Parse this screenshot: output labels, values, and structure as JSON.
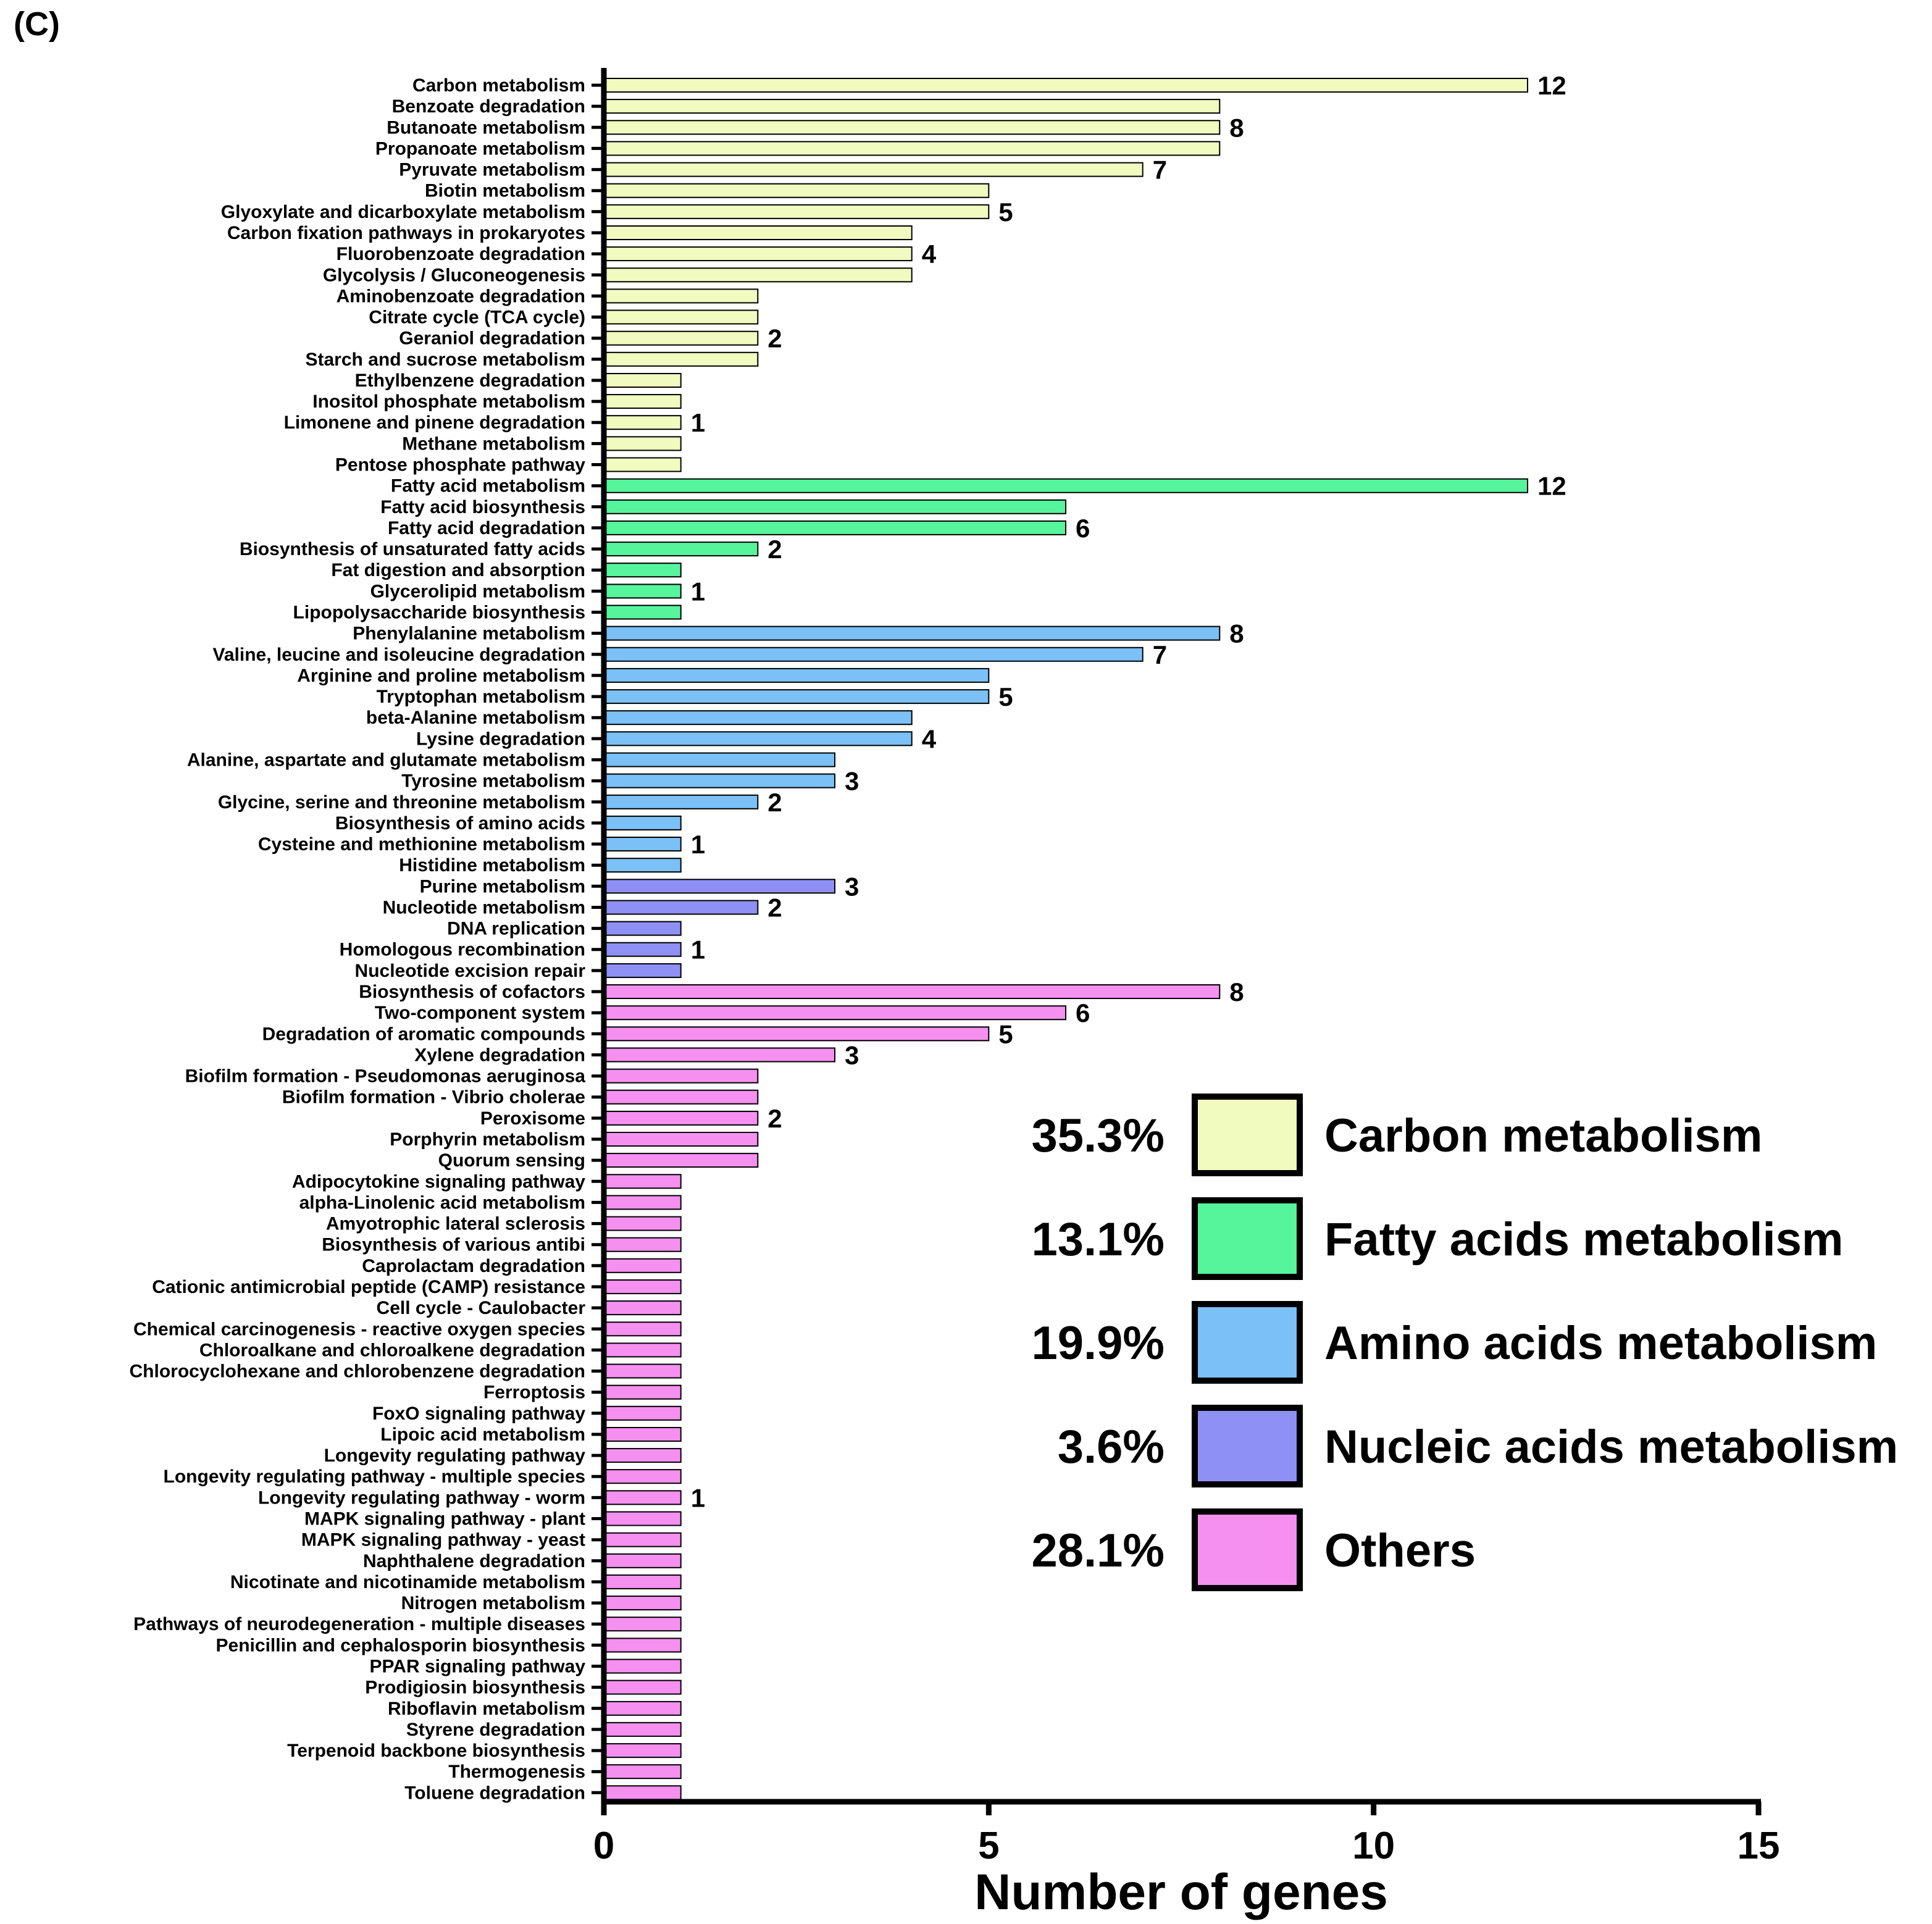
{
  "panel_label": "(C)",
  "chart_data": {
    "type": "bar",
    "orientation": "horizontal",
    "xlabel": "Number of genes",
    "xlim": [
      0,
      15
    ],
    "xticks": [
      0,
      5,
      10,
      15
    ],
    "grid": false,
    "legend_position": "bottom-right",
    "groups": [
      {
        "name": "Carbon metabolism",
        "percent": "35.3%",
        "color": "#f1fbc0"
      },
      {
        "name": "Fatty acids metabolism",
        "percent": "13.1%",
        "color": "#56f59c"
      },
      {
        "name": "Amino acids metabolism",
        "percent": "19.9%",
        "color": "#7bc0f7"
      },
      {
        "name": "Nucleic acids metabolism",
        "percent": "3.6%",
        "color": "#8f90f5"
      },
      {
        "name": "Others",
        "percent": "28.1%",
        "color": "#f590f0"
      }
    ],
    "bars": [
      {
        "category": "Carbon metabolism",
        "value": 12,
        "group": 0,
        "label": "12"
      },
      {
        "category": "Benzoate degradation",
        "value": 8,
        "group": 0,
        "label": ""
      },
      {
        "category": "Butanoate metabolism",
        "value": 8,
        "group": 0,
        "label": "8"
      },
      {
        "category": "Propanoate metabolism",
        "value": 8,
        "group": 0,
        "label": ""
      },
      {
        "category": "Pyruvate metabolism",
        "value": 7,
        "group": 0,
        "label": "7"
      },
      {
        "category": "Biotin metabolism",
        "value": 5,
        "group": 0,
        "label": ""
      },
      {
        "category": "Glyoxylate and dicarboxylate metabolism",
        "value": 5,
        "group": 0,
        "label": "5"
      },
      {
        "category": "Carbon fixation pathways in prokaryotes",
        "value": 4,
        "group": 0,
        "label": ""
      },
      {
        "category": "Fluorobenzoate degradation",
        "value": 4,
        "group": 0,
        "label": "4"
      },
      {
        "category": "Glycolysis / Gluconeogenesis",
        "value": 4,
        "group": 0,
        "label": ""
      },
      {
        "category": "Aminobenzoate degradation",
        "value": 2,
        "group": 0,
        "label": ""
      },
      {
        "category": "Citrate cycle (TCA cycle)",
        "value": 2,
        "group": 0,
        "label": ""
      },
      {
        "category": "Geraniol degradation",
        "value": 2,
        "group": 0,
        "label": "2"
      },
      {
        "category": "Starch and sucrose metabolism",
        "value": 2,
        "group": 0,
        "label": ""
      },
      {
        "category": "Ethylbenzene degradation",
        "value": 1,
        "group": 0,
        "label": ""
      },
      {
        "category": "Inositol phosphate metabolism",
        "value": 1,
        "group": 0,
        "label": ""
      },
      {
        "category": "Limonene and pinene degradation",
        "value": 1,
        "group": 0,
        "label": "1"
      },
      {
        "category": "Methane metabolism",
        "value": 1,
        "group": 0,
        "label": ""
      },
      {
        "category": "Pentose phosphate pathway",
        "value": 1,
        "group": 0,
        "label": ""
      },
      {
        "category": "Fatty acid metabolism",
        "value": 12,
        "group": 1,
        "label": "12"
      },
      {
        "category": "Fatty acid biosynthesis",
        "value": 6,
        "group": 1,
        "label": ""
      },
      {
        "category": "Fatty acid degradation",
        "value": 6,
        "group": 1,
        "label": "6"
      },
      {
        "category": "Biosynthesis of unsaturated fatty acids",
        "value": 2,
        "group": 1,
        "label": "2"
      },
      {
        "category": "Fat digestion and absorption",
        "value": 1,
        "group": 1,
        "label": ""
      },
      {
        "category": "Glycerolipid metabolism",
        "value": 1,
        "group": 1,
        "label": "1"
      },
      {
        "category": "Lipopolysaccharide biosynthesis",
        "value": 1,
        "group": 1,
        "label": ""
      },
      {
        "category": "Phenylalanine metabolism",
        "value": 8,
        "group": 2,
        "label": "8"
      },
      {
        "category": "Valine, leucine and isoleucine degradation",
        "value": 7,
        "group": 2,
        "label": "7"
      },
      {
        "category": "Arginine and proline metabolism",
        "value": 5,
        "group": 2,
        "label": ""
      },
      {
        "category": "Tryptophan metabolism",
        "value": 5,
        "group": 2,
        "label": "5"
      },
      {
        "category": "beta-Alanine metabolism",
        "value": 4,
        "group": 2,
        "label": ""
      },
      {
        "category": "Lysine degradation",
        "value": 4,
        "group": 2,
        "label": "4"
      },
      {
        "category": "Alanine, aspartate and glutamate metabolism",
        "value": 3,
        "group": 2,
        "label": ""
      },
      {
        "category": "Tyrosine metabolism",
        "value": 3,
        "group": 2,
        "label": "3"
      },
      {
        "category": "Glycine, serine and threonine metabolism",
        "value": 2,
        "group": 2,
        "label": "2"
      },
      {
        "category": "Biosynthesis of amino acids",
        "value": 1,
        "group": 2,
        "label": ""
      },
      {
        "category": "Cysteine and methionine metabolism",
        "value": 1,
        "group": 2,
        "label": "1"
      },
      {
        "category": "Histidine metabolism",
        "value": 1,
        "group": 2,
        "label": ""
      },
      {
        "category": "Purine metabolism",
        "value": 3,
        "group": 3,
        "label": "3"
      },
      {
        "category": "Nucleotide metabolism",
        "value": 2,
        "group": 3,
        "label": "2"
      },
      {
        "category": "DNA replication",
        "value": 1,
        "group": 3,
        "label": ""
      },
      {
        "category": "Homologous recombination",
        "value": 1,
        "group": 3,
        "label": "1"
      },
      {
        "category": "Nucleotide excision repair",
        "value": 1,
        "group": 3,
        "label": ""
      },
      {
        "category": "Biosynthesis of cofactors",
        "value": 8,
        "group": 4,
        "label": "8"
      },
      {
        "category": "Two-component system",
        "value": 6,
        "group": 4,
        "label": "6"
      },
      {
        "category": "Degradation of aromatic compounds",
        "value": 5,
        "group": 4,
        "label": "5"
      },
      {
        "category": "Xylene degradation",
        "value": 3,
        "group": 4,
        "label": "3"
      },
      {
        "category": "Biofilm formation - Pseudomonas aeruginosa",
        "value": 2,
        "group": 4,
        "label": ""
      },
      {
        "category": "Biofilm formation - Vibrio cholerae",
        "value": 2,
        "group": 4,
        "label": ""
      },
      {
        "category": "Peroxisome",
        "value": 2,
        "group": 4,
        "label": "2"
      },
      {
        "category": "Porphyrin metabolism",
        "value": 2,
        "group": 4,
        "label": ""
      },
      {
        "category": "Quorum sensing",
        "value": 2,
        "group": 4,
        "label": ""
      },
      {
        "category": "Adipocytokine signaling pathway",
        "value": 1,
        "group": 4,
        "label": ""
      },
      {
        "category": "alpha-Linolenic acid metabolism",
        "value": 1,
        "group": 4,
        "label": ""
      },
      {
        "category": "Amyotrophic lateral sclerosis",
        "value": 1,
        "group": 4,
        "label": ""
      },
      {
        "category": "Biosynthesis of various antibi",
        "value": 1,
        "group": 4,
        "label": ""
      },
      {
        "category": "Caprolactam degradation",
        "value": 1,
        "group": 4,
        "label": ""
      },
      {
        "category": "Cationic antimicrobial peptide (CAMP) resistance",
        "value": 1,
        "group": 4,
        "label": ""
      },
      {
        "category": "Cell cycle - Caulobacter",
        "value": 1,
        "group": 4,
        "label": ""
      },
      {
        "category": "Chemical carcinogenesis - reactive oxygen species",
        "value": 1,
        "group": 4,
        "label": ""
      },
      {
        "category": "Chloroalkane and chloroalkene degradation",
        "value": 1,
        "group": 4,
        "label": ""
      },
      {
        "category": "Chlorocyclohexane and chlorobenzene degradation",
        "value": 1,
        "group": 4,
        "label": ""
      },
      {
        "category": "Ferroptosis",
        "value": 1,
        "group": 4,
        "label": ""
      },
      {
        "category": "FoxO signaling pathway",
        "value": 1,
        "group": 4,
        "label": ""
      },
      {
        "category": "Lipoic acid metabolism",
        "value": 1,
        "group": 4,
        "label": ""
      },
      {
        "category": "Longevity regulating pathway",
        "value": 1,
        "group": 4,
        "label": ""
      },
      {
        "category": "Longevity regulating pathway - multiple species",
        "value": 1,
        "group": 4,
        "label": ""
      },
      {
        "category": "Longevity regulating pathway - worm",
        "value": 1,
        "group": 4,
        "label": "1"
      },
      {
        "category": "MAPK signaling pathway - plant",
        "value": 1,
        "group": 4,
        "label": ""
      },
      {
        "category": "MAPK signaling pathway - yeast",
        "value": 1,
        "group": 4,
        "label": ""
      },
      {
        "category": "Naphthalene degradation",
        "value": 1,
        "group": 4,
        "label": ""
      },
      {
        "category": "Nicotinate and nicotinamide metabolism",
        "value": 1,
        "group": 4,
        "label": ""
      },
      {
        "category": "Nitrogen metabolism",
        "value": 1,
        "group": 4,
        "label": ""
      },
      {
        "category": "Pathways of neurodegeneration - multiple diseases",
        "value": 1,
        "group": 4,
        "label": ""
      },
      {
        "category": "Penicillin and cephalosporin biosynthesis",
        "value": 1,
        "group": 4,
        "label": ""
      },
      {
        "category": "PPAR signaling pathway",
        "value": 1,
        "group": 4,
        "label": ""
      },
      {
        "category": "Prodigiosin biosynthesis",
        "value": 1,
        "group": 4,
        "label": ""
      },
      {
        "category": "Riboflavin metabolism",
        "value": 1,
        "group": 4,
        "label": ""
      },
      {
        "category": "Styrene degradation",
        "value": 1,
        "group": 4,
        "label": ""
      },
      {
        "category": "Terpenoid backbone biosynthesis",
        "value": 1,
        "group": 4,
        "label": ""
      },
      {
        "category": "Thermogenesis",
        "value": 1,
        "group": 4,
        "label": ""
      },
      {
        "category": "Toluene degradation",
        "value": 1,
        "group": 4,
        "label": ""
      }
    ]
  }
}
